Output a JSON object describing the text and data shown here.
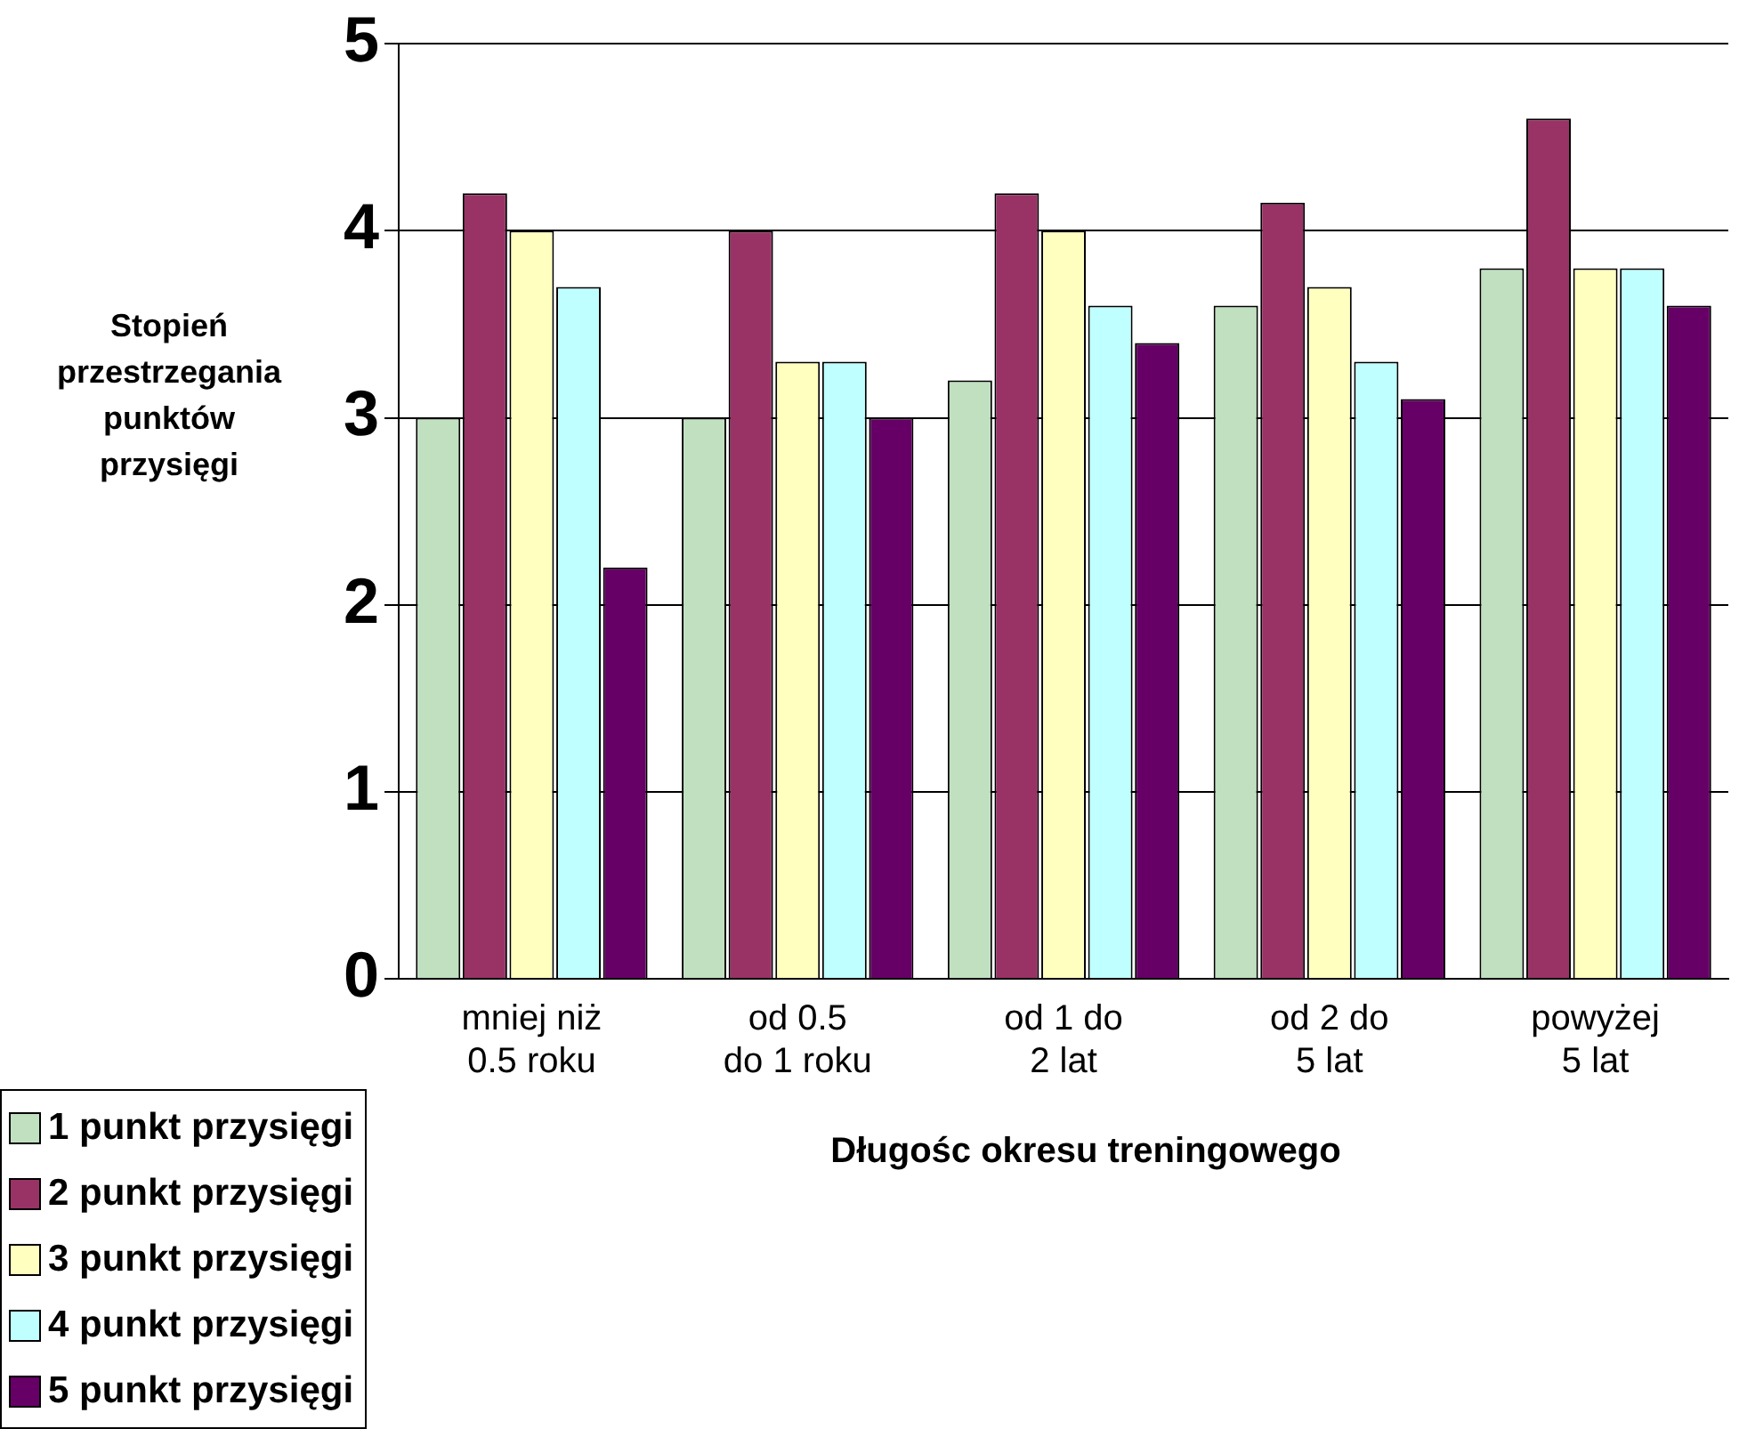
{
  "chart_data": {
    "type": "bar",
    "ylabel": "Stopień przestrzegania punktów przysięgi",
    "xlabel": "Długośc okresu treningowego",
    "categories": [
      "mniej niż 0.5 roku",
      "od 0.5 do 1 roku",
      "od 1 do 2 lat",
      "od 2 do 5 lat",
      "powyżej 5 lat"
    ],
    "series": [
      {
        "name": "1 punkt przysięgi",
        "color": "#c0e0c0",
        "values": [
          3.0,
          3.0,
          3.2,
          3.6,
          3.8
        ]
      },
      {
        "name": "2 punkt przysięgi",
        "color": "#993366",
        "values": [
          4.2,
          4.0,
          4.2,
          4.15,
          4.6
        ]
      },
      {
        "name": "3 punkt przysięgi",
        "color": "#ffffc0",
        "values": [
          4.0,
          3.3,
          4.0,
          3.7,
          3.8
        ]
      },
      {
        "name": "4 punkt przysięgi",
        "color": "#c0ffff",
        "values": [
          3.7,
          3.3,
          3.6,
          3.3,
          3.8
        ]
      },
      {
        "name": "5 punkt przysięgi",
        "color": "#660066",
        "values": [
          2.2,
          3.0,
          3.4,
          3.1,
          3.6
        ]
      }
    ],
    "ylim": [
      0,
      5
    ],
    "yticks": [
      0,
      1,
      2,
      3,
      4,
      5
    ],
    "grid": "y",
    "legend": "bottom left"
  }
}
